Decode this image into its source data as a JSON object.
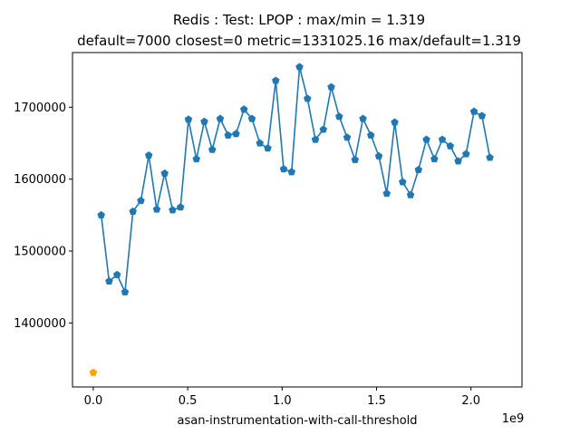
{
  "chart_data": {
    "type": "scatter",
    "title": "Redis : Test: LPOP : max/min = 1.319",
    "subtitle": "default=7000 closest=0 metric=1331025.16 max/default=1.319",
    "xlabel": "asan-instrumentation-with-call-threshold",
    "x_offset_label": "1e9",
    "ylabel": "",
    "xlim": [
      -0.11,
      2.27
    ],
    "ylim": [
      1311000,
      1776000
    ],
    "x_scale_factor": 1000000000,
    "x_ticks": [
      0.0,
      0.5,
      1.0,
      1.5,
      2.0
    ],
    "x_tick_labels": [
      "0.0",
      "0.5",
      "1.0",
      "1.5",
      "2.0"
    ],
    "y_ticks": [
      1400000,
      1500000,
      1600000,
      1700000
    ],
    "y_tick_labels": [
      "1400000",
      "1500000",
      "1600000",
      "1700000"
    ],
    "grid": false,
    "colors": {
      "series": "#1f77b4",
      "default_point": "#ffa500"
    },
    "default_point": {
      "x": 0.0,
      "y": 1331025
    },
    "series": [
      {
        "marker": "pentagon",
        "x": [
          0.042,
          0.084,
          0.126,
          0.168,
          0.21,
          0.252,
          0.294,
          0.336,
          0.378,
          0.42,
          0.462,
          0.504,
          0.546,
          0.588,
          0.63,
          0.672,
          0.714,
          0.756,
          0.798,
          0.84,
          0.882,
          0.924,
          0.966,
          1.008,
          1.05,
          1.092,
          1.134,
          1.176,
          1.218,
          1.26,
          1.302,
          1.344,
          1.386,
          1.428,
          1.47,
          1.512,
          1.554,
          1.596,
          1.638,
          1.68,
          1.722,
          1.764,
          1.806,
          1.848,
          1.89,
          1.932,
          1.974,
          2.016,
          2.058,
          2.1
        ],
        "y": [
          1550000,
          1458000,
          1467000,
          1443000,
          1555000,
          1570000,
          1633000,
          1558000,
          1608000,
          1557000,
          1561000,
          1683000,
          1628000,
          1680000,
          1641000,
          1684000,
          1661000,
          1663000,
          1697000,
          1684000,
          1650000,
          1643000,
          1737000,
          1614000,
          1610000,
          1756000,
          1712000,
          1655000,
          1669000,
          1728000,
          1687000,
          1658000,
          1627000,
          1684000,
          1661000,
          1632000,
          1580000,
          1679000,
          1596000,
          1578000,
          1613000,
          1655000,
          1628000,
          1655000,
          1646000,
          1625000,
          1635000,
          1694000,
          1688000,
          1630000
        ]
      }
    ]
  }
}
